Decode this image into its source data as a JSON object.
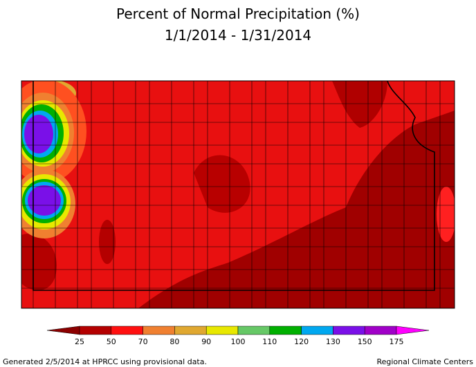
{
  "header": {
    "title": "Percent of Normal Precipitation (%)",
    "subtitle": "1/1/2014 - 1/31/2014"
  },
  "legend": {
    "labels": [
      25,
      50,
      70,
      80,
      90,
      100,
      110,
      120,
      130,
      150,
      175
    ],
    "colors": [
      "#8c0000",
      "#b40000",
      "#ff1010",
      "#f08030",
      "#e0a830",
      "#e8e800",
      "#66c866",
      "#00b000",
      "#00a8f0",
      "#7a10e8",
      "#a000c8",
      "#ff00ff"
    ]
  },
  "footer": {
    "left": "Generated 2/5/2014 at HPRCC using provisional data.",
    "right": "Regional Climate Centers"
  }
}
